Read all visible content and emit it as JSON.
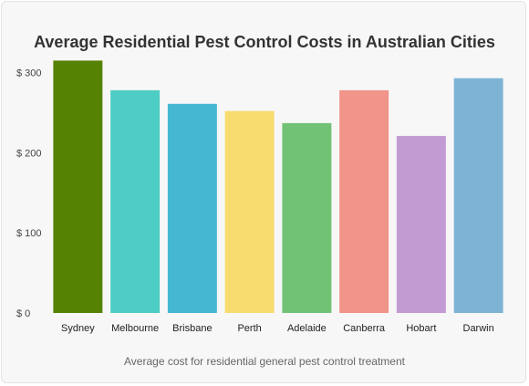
{
  "chart_data": {
    "type": "bar",
    "title": "Average Residential Pest Control Costs in Australian Cities",
    "caption": "Average cost for residential general pest control treatment",
    "categories": [
      "Sydney",
      "Melbourne",
      "Brisbane",
      "Perth",
      "Adelaide",
      "Canberra",
      "Hobart",
      "Darwin"
    ],
    "values": [
      315,
      278,
      261,
      252,
      237,
      278,
      221,
      293
    ],
    "colors": [
      "#568203",
      "#4ecdc4",
      "#45b7d1",
      "#f7dc6f",
      "#72c276",
      "#f1948a",
      "#c39bd3",
      "#7fb3d5"
    ],
    "ylim": [
      0,
      320
    ],
    "yticks": [
      0,
      100,
      200,
      300
    ],
    "ytick_labels": [
      "$ 0",
      "$ 100",
      "$ 200",
      "$ 300"
    ],
    "grid": false,
    "legend": "none"
  }
}
